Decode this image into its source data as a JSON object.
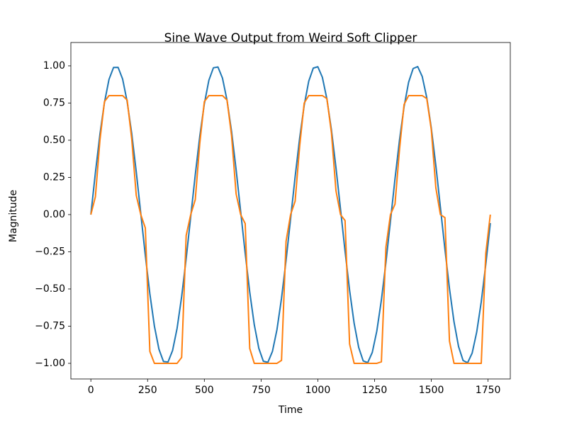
{
  "chart_data": {
    "type": "line",
    "title": "Sine Wave Output from Weird Soft Clipper",
    "x_label": "Time",
    "y_label": "Magnitude",
    "x": [
      0,
      20,
      40,
      60,
      80,
      100,
      120,
      140,
      160,
      180,
      200,
      220,
      240,
      260,
      280,
      300,
      320,
      340,
      360,
      380,
      400,
      420,
      440,
      460,
      480,
      500,
      520,
      540,
      560,
      580,
      600,
      620,
      640,
      660,
      680,
      700,
      720,
      740,
      760,
      780,
      800,
      820,
      840,
      860,
      880,
      900,
      920,
      940,
      960,
      980,
      1000,
      1020,
      1040,
      1060,
      1080,
      1100,
      1120,
      1140,
      1160,
      1180,
      1200,
      1220,
      1240,
      1260,
      1280,
      1300,
      1320,
      1340,
      1360,
      1380,
      1400,
      1420,
      1440,
      1460,
      1480,
      1500,
      1520,
      1540,
      1560,
      1580,
      1600,
      1620,
      1640,
      1660,
      1680,
      1700,
      1720,
      1740,
      1760
    ],
    "series": [
      {
        "color": "#1f77b4",
        "values": [
          0,
          0.281,
          0.54,
          0.754,
          0.909,
          0.989,
          0.99,
          0.911,
          0.759,
          0.546,
          0.288,
          0.007,
          -0.274,
          -0.533,
          -0.75,
          -0.905,
          -0.988,
          -0.991,
          -0.914,
          -0.764,
          -0.552,
          -0.295,
          -0.014,
          0.267,
          0.528,
          0.745,
          0.903,
          0.987,
          0.992,
          0.917,
          0.768,
          0.558,
          0.302,
          0.021,
          -0.26,
          -0.521,
          -0.74,
          -0.899,
          -0.986,
          -0.993,
          -0.92,
          -0.773,
          -0.563,
          -0.308,
          -0.028,
          0.254,
          0.515,
          0.735,
          0.897,
          0.985,
          0.994,
          0.923,
          0.777,
          0.569,
          0.315,
          0.036,
          -0.247,
          -0.509,
          -0.731,
          -0.893,
          -0.984,
          -0.995,
          -0.926,
          -0.782,
          -0.575,
          -0.322,
          -0.043,
          0.24,
          0.503,
          0.726,
          0.89,
          0.982,
          0.995,
          0.928,
          0.786,
          0.581,
          0.329,
          0.05,
          -0.233,
          -0.497,
          -0.721,
          -0.887,
          -0.981,
          -0.996,
          -0.931,
          -0.79,
          -0.587,
          -0.335,
          -0.057
        ]
      },
      {
        "color": "#ff7f0e",
        "values": [
          0,
          0.12,
          0.5,
          0.76,
          0.8,
          0.8,
          0.8,
          0.8,
          0.77,
          0.51,
          0.13,
          0,
          -0.09,
          -0.92,
          -1,
          -1,
          -1,
          -1,
          -1,
          -1,
          -0.96,
          -0.14,
          0,
          0.1,
          0.48,
          0.76,
          0.8,
          0.8,
          0.8,
          0.8,
          0.77,
          0.53,
          0.14,
          0,
          -0.06,
          -0.9,
          -1,
          -1,
          -1,
          -1,
          -1,
          -1,
          -0.98,
          -0.18,
          0,
          0.09,
          0.46,
          0.75,
          0.8,
          0.8,
          0.8,
          0.8,
          0.78,
          0.55,
          0.16,
          0,
          -0.04,
          -0.87,
          -1,
          -1,
          -1,
          -1,
          -1,
          -1,
          -0.99,
          -0.22,
          0,
          0.07,
          0.44,
          0.74,
          0.8,
          0.8,
          0.8,
          0.8,
          0.78,
          0.57,
          0.18,
          0,
          -0.02,
          -0.85,
          -1,
          -1,
          -1,
          -1,
          -1,
          -1,
          -1,
          -0.26,
          0
        ]
      }
    ],
    "xlim": [
      -88,
      1848
    ],
    "ylim": [
      -1.105,
      1.157
    ],
    "xticks": [
      0,
      250,
      500,
      750,
      1000,
      1250,
      1500,
      1750
    ],
    "yticks": [
      {
        "value": -1,
        "label": "−1.00"
      },
      {
        "value": -0.75,
        "label": "−0.75"
      },
      {
        "value": -0.5,
        "label": "−0.50"
      },
      {
        "value": -0.25,
        "label": "−0.25"
      },
      {
        "value": 0,
        "label": "0.00"
      },
      {
        "value": 0.25,
        "label": "0.25"
      },
      {
        "value": 0.5,
        "label": "0.50"
      },
      {
        "value": 0.75,
        "label": "0.75"
      },
      {
        "value": 1,
        "label": "1.00"
      }
    ]
  }
}
